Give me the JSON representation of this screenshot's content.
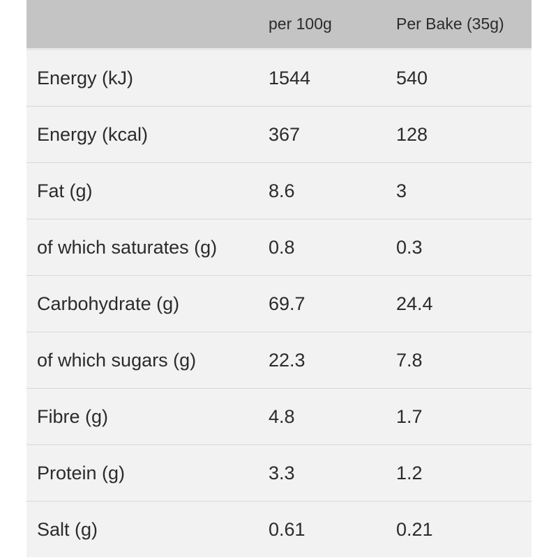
{
  "table": {
    "headers": [
      "",
      "per 100g",
      "Per Bake (35g)"
    ],
    "rows": [
      {
        "label": "Energy (kJ)",
        "per_100g": "1544",
        "per_bake": "540"
      },
      {
        "label": "Energy (kcal)",
        "per_100g": "367",
        "per_bake": "128"
      },
      {
        "label": "Fat (g)",
        "per_100g": "8.6",
        "per_bake": "3"
      },
      {
        "label": "of which saturates (g)",
        "per_100g": "0.8",
        "per_bake": "0.3"
      },
      {
        "label": "Carbohydrate (g)",
        "per_100g": "69.7",
        "per_bake": "24.4"
      },
      {
        "label": "of which sugars (g)",
        "per_100g": "22.3",
        "per_bake": "7.8"
      },
      {
        "label": "Fibre (g)",
        "per_100g": "4.8",
        "per_bake": "1.7"
      },
      {
        "label": "Protein (g)",
        "per_100g": "3.3",
        "per_bake": "1.2"
      },
      {
        "label": "Salt (g)",
        "per_100g": "0.61",
        "per_bake": "0.21"
      }
    ]
  },
  "colors": {
    "header_background": "#c4c4c4",
    "row_background": "#f2f2f2",
    "divider": "#d7d7d7",
    "text": "#2b2b2b"
  }
}
